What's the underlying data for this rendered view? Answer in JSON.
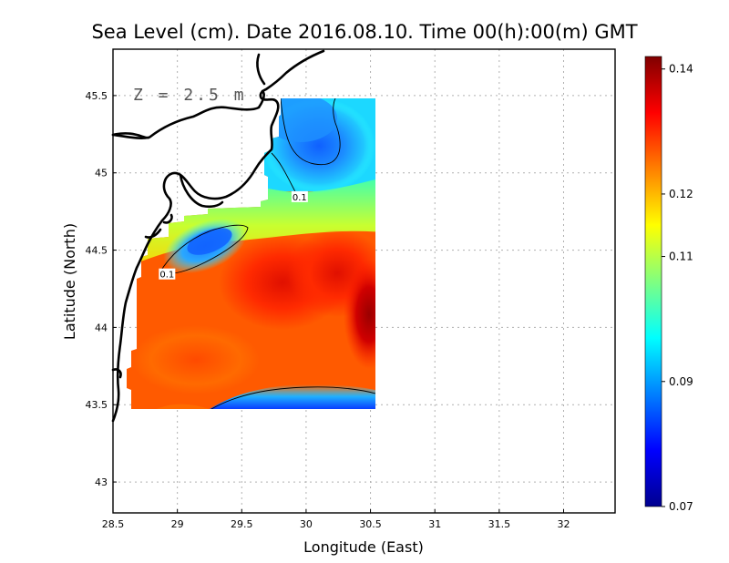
{
  "title": "Sea Level (cm). Date 2016.08.10. Time 00(h):00(m) GMT",
  "depth_label": "Z = 2.5 m",
  "x_axis": {
    "title": "Longitude (East)",
    "range": [
      28.5,
      32.4
    ],
    "ticks": [
      {
        "value": 28.5,
        "label": "28.5"
      },
      {
        "value": 29,
        "label": "29"
      },
      {
        "value": 29.5,
        "label": "29.5"
      },
      {
        "value": 30,
        "label": "30"
      },
      {
        "value": 30.5,
        "label": "30.5"
      },
      {
        "value": 31,
        "label": "31"
      },
      {
        "value": 31.5,
        "label": "31.5"
      },
      {
        "value": 32,
        "label": "32"
      }
    ]
  },
  "y_axis": {
    "title": "Latitude (North)",
    "range": [
      42.8,
      45.8
    ],
    "ticks": [
      {
        "value": 43,
        "label": "43"
      },
      {
        "value": 43.5,
        "label": "43.5"
      },
      {
        "value": 44,
        "label": "44"
      },
      {
        "value": 44.5,
        "label": "44.5"
      },
      {
        "value": 45,
        "label": "45"
      },
      {
        "value": 45.5,
        "label": "45.5"
      }
    ]
  },
  "colorbar": {
    "min": 0.07,
    "max": 0.142,
    "colors": [
      "#00008f",
      "#0000ff",
      "#0080ff",
      "#00ffff",
      "#80ff80",
      "#ffff00",
      "#ff8000",
      "#ff0000",
      "#800000"
    ],
    "ticks": [
      {
        "value": 0.07,
        "label": "0.07"
      },
      {
        "value": 0.09,
        "label": "0.09"
      },
      {
        "value": 0.11,
        "label": "0.11"
      },
      {
        "value": 0.12,
        "label": "0.12"
      },
      {
        "value": 0.14,
        "label": "0.14"
      }
    ]
  },
  "contour_labels": [
    {
      "text": "0.1",
      "lon": 29.95,
      "lat": 44.84
    },
    {
      "text": "0.1",
      "lon": 28.92,
      "lat": 44.34
    }
  ],
  "grid": true
}
